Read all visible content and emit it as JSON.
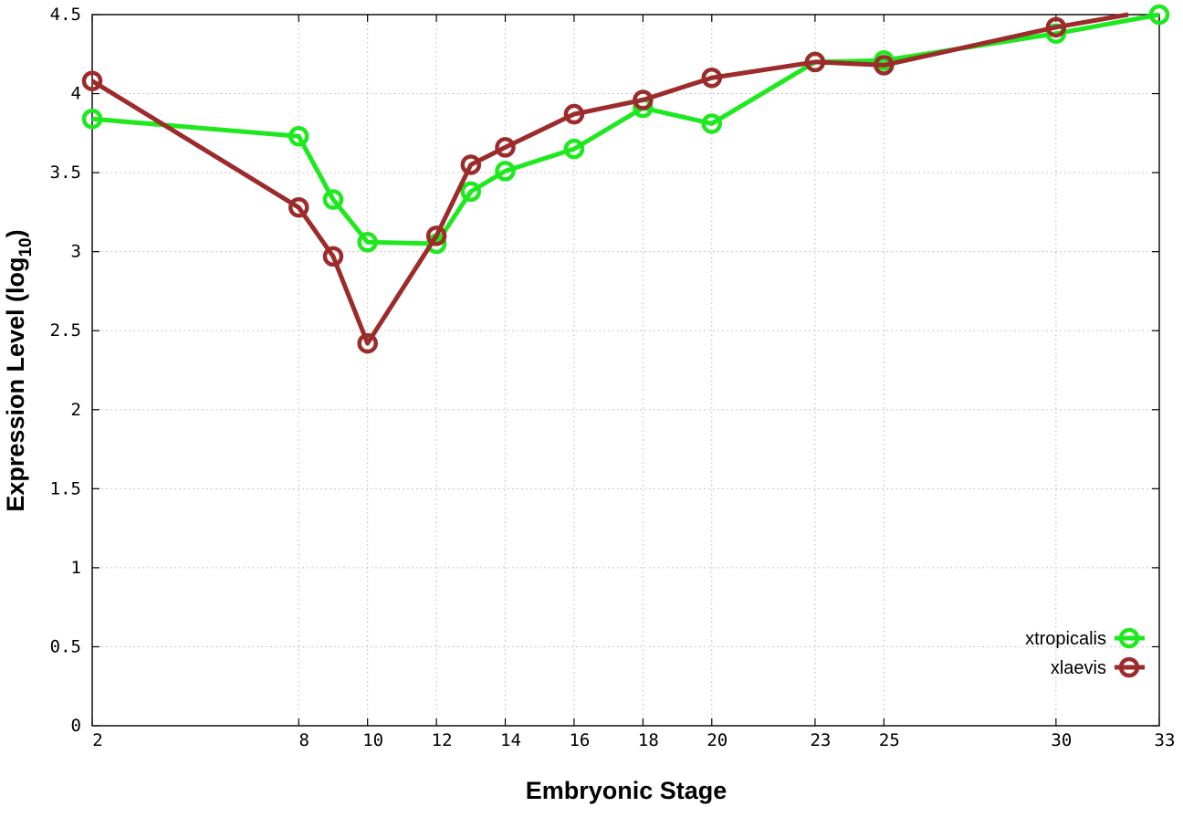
{
  "chart_data": {
    "type": "line",
    "title": "",
    "xlabel": "Embryonic Stage",
    "ylabel_main": "Expression Level (log",
    "ylabel_sub": "10",
    "ylabel_close": ")",
    "xlim": [
      2,
      33
    ],
    "ylim": [
      0,
      4.5
    ],
    "x_ticks": [
      2,
      8,
      10,
      12,
      14,
      16,
      18,
      20,
      23,
      25,
      30,
      33
    ],
    "x_tick_labels": [
      "2",
      "8",
      "10",
      "12",
      "14",
      "16",
      "18",
      "20",
      "23",
      "25",
      "30",
      "33"
    ],
    "y_ticks": [
      0,
      0.5,
      1,
      1.5,
      2,
      2.5,
      3,
      3.5,
      4,
      4.5
    ],
    "y_tick_labels": [
      "0",
      "0.5",
      "1",
      "1.5",
      "2",
      "2.5",
      "3",
      "3.5",
      "4",
      "4.5"
    ],
    "grid": true,
    "legend_position": "bottom-right",
    "series": [
      {
        "name": "xtropicalis",
        "color": "#1ee81e",
        "points": [
          [
            2,
            3.84
          ],
          [
            8,
            3.73
          ],
          [
            9,
            3.33
          ],
          [
            10,
            3.06
          ],
          [
            12,
            3.05
          ],
          [
            13,
            3.38
          ],
          [
            14,
            3.51
          ],
          [
            16,
            3.65
          ],
          [
            18,
            3.91
          ],
          [
            20,
            3.81
          ],
          [
            23,
            4.2
          ],
          [
            25,
            4.21
          ],
          [
            30,
            4.38
          ],
          [
            33,
            4.5
          ]
        ],
        "line_to": null
      },
      {
        "name": "xlaevis",
        "color": "#9c2b2b",
        "points": [
          [
            2,
            4.08
          ],
          [
            8,
            3.28
          ],
          [
            9,
            2.97
          ],
          [
            10,
            2.42
          ],
          [
            12,
            3.1
          ],
          [
            13,
            3.55
          ],
          [
            14,
            3.66
          ],
          [
            16,
            3.87
          ],
          [
            18,
            3.96
          ],
          [
            20,
            4.1
          ],
          [
            23,
            4.2
          ],
          [
            25,
            4.18
          ],
          [
            30,
            4.42
          ]
        ],
        "line_to": [
          32.1,
          4.5
        ]
      }
    ]
  }
}
